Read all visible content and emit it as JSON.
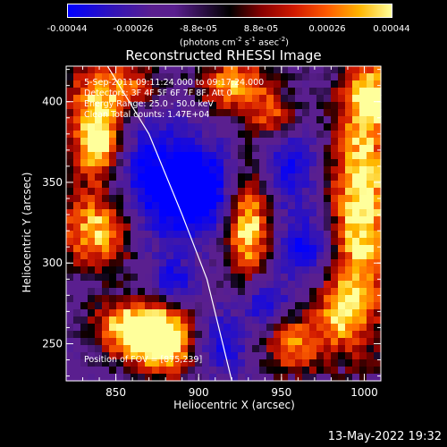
{
  "colorbar": {
    "tick_labels": [
      "-0.00044",
      "-0.00026",
      "-8.8e-05",
      "8.8e-05",
      "0.00026",
      "0.00044"
    ],
    "tick_values": [
      -0.00044,
      -0.00026,
      -8.8e-05,
      8.8e-05,
      0.00026,
      0.00044
    ],
    "range": [
      -0.00044,
      0.00044
    ],
    "unit_prefix": "(photons cm",
    "unit_exp1": "-2",
    "unit_mid": " s",
    "unit_exp2": "-1",
    "unit_mid2": " asec",
    "unit_exp3": "-2",
    "unit_suffix": ")"
  },
  "annotations": {
    "time_range": "5-Sep-2011 09:11:24.000 to 09:17:24.000",
    "detectors": "Detectors: 3F 4F 5F 6F 7F 8F, Att 0",
    "energy_range": "Energy Range: 25.0 - 50.0 keV",
    "method": "Clean    Total counts: 1.47E+04",
    "position": "Position of FOV = [875,239]"
  },
  "footer_timestamp": "13-May-2022 19:32",
  "chart_data": {
    "type": "heatmap",
    "title": "Reconstructed RHESSI Image",
    "xlabel": "Heliocentric X (arcsec)",
    "ylabel": "Heliocentric Y (arcsec)",
    "xlim": [
      820,
      1010
    ],
    "ylim": [
      227,
      422
    ],
    "xticks": [
      850,
      900,
      950,
      1000
    ],
    "yticks": [
      250,
      300,
      350,
      400
    ],
    "colors": {
      "blue": "#0000ff",
      "purple": "#5a1f8f",
      "black": "#000000",
      "red": "#d21a00",
      "orange": "#ff6a00",
      "yellow": "#ffff9b",
      "limb_line": "#ffffff"
    },
    "limb_line": [
      [
        845,
        422
      ],
      [
        870,
        380
      ],
      [
        890,
        330
      ],
      [
        905,
        290
      ],
      [
        920,
        227
      ]
    ],
    "blobs": [
      {
        "x": 840,
        "y": 400,
        "sx": 14,
        "sy": 22,
        "amp": 0.85
      },
      {
        "x": 838,
        "y": 370,
        "sx": 10,
        "sy": 14,
        "amp": 0.7
      },
      {
        "x": 840,
        "y": 320,
        "sx": 18,
        "sy": 18,
        "amp": 0.9
      },
      {
        "x": 862,
        "y": 260,
        "sx": 18,
        "sy": 12,
        "amp": 1.0
      },
      {
        "x": 880,
        "y": 248,
        "sx": 16,
        "sy": 14,
        "amp": 0.9
      },
      {
        "x": 865,
        "y": 410,
        "sx": 10,
        "sy": 10,
        "amp": 0.5
      },
      {
        "x": 922,
        "y": 410,
        "sx": 16,
        "sy": 12,
        "amp": 0.85
      },
      {
        "x": 930,
        "y": 322,
        "sx": 10,
        "sy": 26,
        "amp": 0.95
      },
      {
        "x": 958,
        "y": 250,
        "sx": 14,
        "sy": 14,
        "amp": 0.75
      },
      {
        "x": 945,
        "y": 390,
        "sx": 10,
        "sy": 10,
        "amp": 0.6
      },
      {
        "x": 998,
        "y": 335,
        "sx": 14,
        "sy": 60,
        "amp": 1.0
      },
      {
        "x": 985,
        "y": 270,
        "sx": 10,
        "sy": 14,
        "amp": 0.6
      },
      {
        "x": 1005,
        "y": 405,
        "sx": 10,
        "sy": 14,
        "amp": 0.6
      },
      {
        "x": 900,
        "y": 345,
        "sx": 14,
        "sy": 18,
        "amp": -1.0
      },
      {
        "x": 885,
        "y": 290,
        "sx": 8,
        "sy": 8,
        "amp": -0.5
      },
      {
        "x": 940,
        "y": 275,
        "sx": 10,
        "sy": 12,
        "amp": -0.6
      },
      {
        "x": 955,
        "y": 360,
        "sx": 12,
        "sy": 18,
        "amp": -0.5
      },
      {
        "x": 965,
        "y": 310,
        "sx": 12,
        "sy": 14,
        "amp": -0.55
      },
      {
        "x": 870,
        "y": 350,
        "sx": 14,
        "sy": 30,
        "amp": -0.65
      },
      {
        "x": 912,
        "y": 250,
        "sx": 12,
        "sy": 14,
        "amp": -0.55
      }
    ]
  }
}
